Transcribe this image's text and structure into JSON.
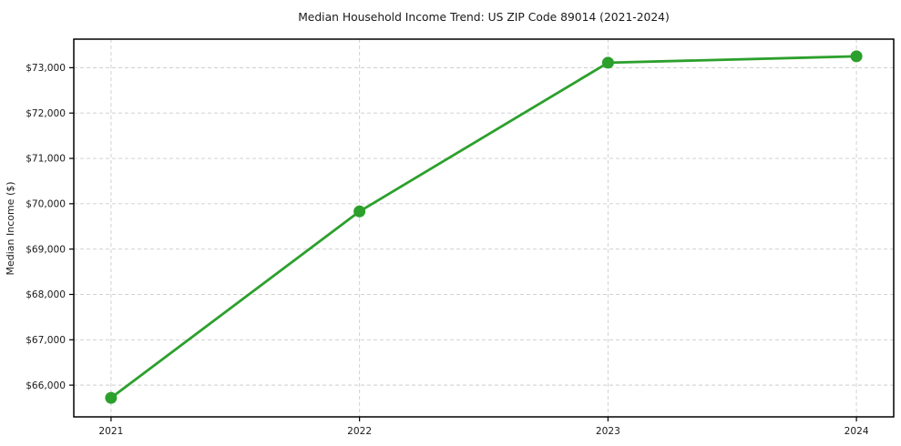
{
  "chart_data": {
    "type": "line",
    "title": "Median Household Income Trend: US ZIP Code 89014 (2021-2024)",
    "xlabel": "",
    "ylabel": "Median Income ($)",
    "x": [
      2021,
      2022,
      2023,
      2024
    ],
    "x_tick_labels": [
      "2021",
      "2022",
      "2023",
      "2024"
    ],
    "series": [
      {
        "name": "median-household-income",
        "values": [
          65720,
          69830,
          73110,
          73250
        ],
        "color": "#2ca02c",
        "marker": "circle"
      }
    ],
    "y_ticks": [
      66000,
      67000,
      68000,
      69000,
      70000,
      71000,
      72000,
      73000
    ],
    "y_tick_labels": [
      "$66,000",
      "$67,000",
      "$68,000",
      "$69,000",
      "$70,000",
      "$71,000",
      "$72,000",
      "$73,000"
    ],
    "xlim": [
      2020.85,
      2024.15
    ],
    "ylim": [
      65300,
      73630
    ],
    "grid": true,
    "grid_style": "dashed",
    "legend": "none",
    "colors": {
      "line": "#2ca02c",
      "grid": "#cccccc",
      "axis": "#000000",
      "text": "#1a1a1a",
      "background": "#ffffff"
    }
  }
}
